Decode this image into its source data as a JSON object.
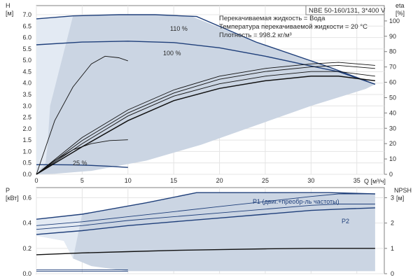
{
  "chart_data": [
    {
      "type": "line",
      "panel": "QH",
      "title": "NBE 50-160/131, 3*400 V",
      "info_lines": [
        "Перекачиваемая жидкость = Вода",
        "Температура перекачиваемой жидкости = 20 °C",
        "Плотность = 998.2 кг/м³"
      ],
      "left_axis_unit": [
        "H",
        "[м]"
      ],
      "right_axis_unit": [
        "eta",
        "[%]"
      ],
      "xlabel": "Q [м³/ч]",
      "xlim": [
        0,
        38
      ],
      "ylim": [
        0,
        7.4
      ],
      "eta_lim": [
        0,
        110
      ],
      "x_ticks": [
        "0",
        "5",
        "10",
        "15",
        "20",
        "25",
        "30",
        "35"
      ],
      "y_ticks": [
        "0.0",
        "0.5",
        "1.0",
        "1.5",
        "2.0",
        "2.5",
        "3.0",
        "3.5",
        "4.0",
        "4.5",
        "5.0",
        "5.5",
        "6.0",
        "6.5",
        "7.0"
      ],
      "eta_ticks": [
        "0",
        "10",
        "20",
        "30",
        "40",
        "50",
        "60",
        "70",
        "80",
        "90",
        "100"
      ],
      "shaded_region": [
        [
          0,
          0
        ],
        [
          0,
          6.82
        ],
        [
          4,
          6.95
        ],
        [
          9,
          7.0
        ],
        [
          13,
          7.0
        ],
        [
          17,
          6.92
        ],
        [
          24,
          5.8
        ],
        [
          32,
          4.7
        ],
        [
          37,
          3.95
        ],
        [
          36,
          3.75
        ],
        [
          30,
          3.0
        ],
        [
          24,
          2.15
        ],
        [
          18,
          1.3
        ],
        [
          12,
          0.6
        ],
        [
          6,
          0.15
        ],
        [
          2,
          0.02
        ],
        [
          0,
          0
        ]
      ],
      "light_region": [
        [
          0,
          0
        ],
        [
          0,
          6.8
        ],
        [
          4,
          6.95
        ],
        [
          1.5,
          3.0
        ],
        [
          1.2,
          1.2
        ],
        [
          1,
          0.5
        ],
        [
          0,
          0
        ]
      ],
      "hq_curves": [
        {
          "name": "110 %",
          "x": [
            0,
            4,
            9,
            13,
            17.5,
            24,
            32,
            37
          ],
          "y": [
            6.82,
            6.95,
            7.0,
            7.0,
            6.92,
            5.8,
            4.7,
            3.95
          ]
        },
        {
          "name": "100 %",
          "x": [
            0,
            5,
            10,
            15,
            20,
            25,
            30,
            33,
            37
          ],
          "y": [
            5.68,
            5.8,
            5.84,
            5.78,
            5.55,
            5.18,
            4.75,
            4.5,
            3.95
          ]
        },
        {
          "name": "25 %",
          "x": [
            0,
            2,
            4,
            6,
            8,
            10
          ],
          "y": [
            0.42,
            0.42,
            0.41,
            0.39,
            0.35,
            0.3
          ]
        }
      ],
      "eta_curves": [
        {
          "x": [
            0,
            2,
            4,
            6,
            7.5,
            9,
            10
          ],
          "y": [
            0,
            35,
            57,
            72,
            77,
            76,
            74
          ]
        },
        {
          "x": [
            0,
            5,
            10,
            15,
            20,
            25,
            30,
            33,
            37
          ],
          "y": [
            0,
            24,
            42,
            55,
            64,
            69,
            72,
            73,
            71
          ]
        },
        {
          "x": [
            0,
            5,
            10,
            15,
            20,
            25,
            30,
            33,
            37
          ],
          "y": [
            0,
            22,
            40,
            53,
            62,
            67,
            70,
            71,
            69
          ]
        },
        {
          "x": [
            0,
            5,
            10,
            15,
            20,
            25,
            30,
            33,
            37
          ],
          "y": [
            0,
            20,
            38,
            51,
            59,
            64,
            67,
            67,
            64
          ]
        },
        {
          "x": [
            0,
            5,
            10,
            15,
            20,
            25,
            30,
            33,
            37
          ],
          "y": [
            0,
            18,
            35,
            48,
            56,
            61,
            64,
            64,
            61
          ]
        },
        {
          "x": [
            0,
            2,
            4,
            6,
            8,
            10
          ],
          "y": [
            0,
            9,
            16,
            20,
            22,
            22.5
          ]
        }
      ]
    },
    {
      "type": "line",
      "panel": "P-NPSH",
      "left_axis_unit": [
        "P",
        "[кВт]"
      ],
      "right_axis_unit": [
        "NPSH",
        "[м]"
      ],
      "xlim": [
        0,
        38
      ],
      "ylim": [
        0,
        0.68
      ],
      "npsh_lim": [
        0,
        3.4
      ],
      "y_ticks": [
        "0.0",
        "0.2",
        "0.4",
        "0.6"
      ],
      "npsh_ticks": [
        "0",
        "1",
        "2",
        "3"
      ],
      "shaded_region": [
        [
          0,
          0.43
        ],
        [
          5,
          0.47
        ],
        [
          12,
          0.56
        ],
        [
          17.5,
          0.64
        ],
        [
          37,
          0.63
        ],
        [
          37,
          0.02
        ],
        [
          15,
          0.02
        ],
        [
          10,
          0.02
        ],
        [
          6,
          0.06
        ],
        [
          4,
          0.12
        ],
        [
          3,
          0.26
        ],
        [
          0,
          0.3
        ]
      ],
      "light_region": [
        [
          0,
          0.43
        ],
        [
          5,
          0.47
        ],
        [
          4,
          0.12
        ],
        [
          3,
          0.26
        ],
        [
          0,
          0.3
        ]
      ],
      "power_curves": [
        {
          "name": "P1 (двиг.+преобр-ль частоты)",
          "x": [
            0,
            5,
            12,
            17.5,
            24,
            32,
            37
          ],
          "y": [
            0.43,
            0.47,
            0.56,
            0.64,
            0.64,
            0.64,
            0.63
          ]
        },
        {
          "x": [
            0,
            5,
            10,
            15,
            20,
            25,
            30,
            33,
            37
          ],
          "y": [
            0.38,
            0.41,
            0.45,
            0.49,
            0.53,
            0.57,
            0.61,
            0.63,
            0.63
          ]
        },
        {
          "x": [
            0,
            5,
            10,
            15,
            20,
            25,
            30,
            33,
            37
          ],
          "y": [
            0.35,
            0.38,
            0.42,
            0.45,
            0.48,
            0.51,
            0.54,
            0.55,
            0.55
          ]
        },
        {
          "name": "P2",
          "x": [
            0,
            5,
            10,
            15,
            20,
            25,
            30,
            33,
            37
          ],
          "y": [
            0.31,
            0.34,
            0.38,
            0.41,
            0.44,
            0.47,
            0.5,
            0.51,
            0.52
          ]
        },
        {
          "x": [
            0,
            10
          ],
          "y": [
            0.03,
            0.03
          ]
        },
        {
          "x": [
            0,
            10
          ],
          "y": [
            0.02,
            0.02
          ]
        }
      ],
      "npsh_curves": [
        {
          "x": [
            0,
            5,
            10,
            15,
            20,
            25,
            30,
            35,
            37
          ],
          "y": [
            0.75,
            0.82,
            0.87,
            0.92,
            0.95,
            0.98,
            1.0,
            1.0,
            1.0
          ]
        }
      ]
    }
  ]
}
